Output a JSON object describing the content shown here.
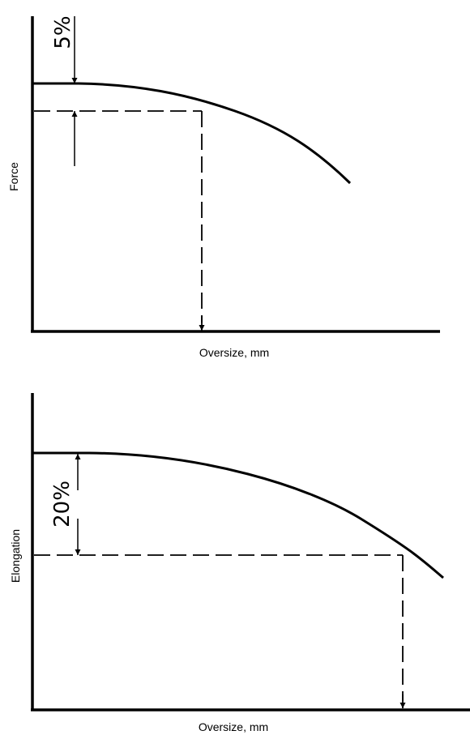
{
  "chart_data": [
    {
      "type": "line",
      "xlabel": "Oversize, mm",
      "ylabel": "Force",
      "annotation": "5%",
      "grid": false
    },
    {
      "type": "line",
      "xlabel": "Oversize, mm",
      "ylabel": "Elongation",
      "annotation": "20%",
      "grid": false
    }
  ]
}
